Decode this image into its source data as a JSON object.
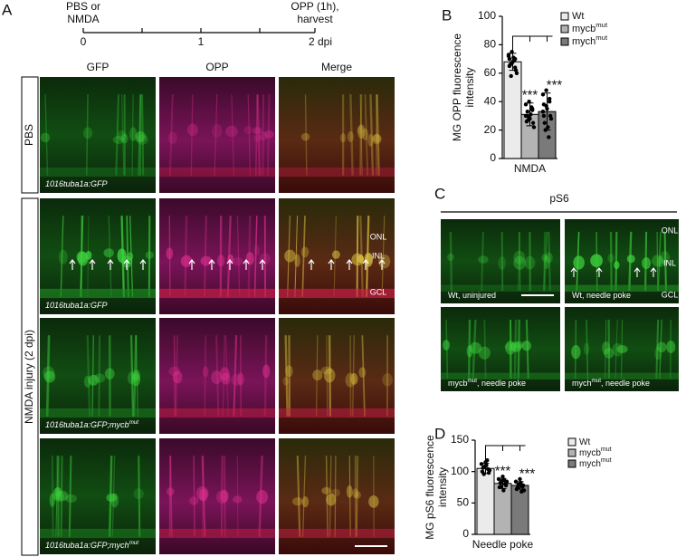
{
  "chart_data": [
    {
      "type": "bar",
      "panel": "B",
      "ylabel": [
        "MG OPP fluorescence",
        "intensity"
      ],
      "categories": [
        "NMDA"
      ],
      "series": [
        {
          "name": "Wt",
          "color": "#ebebeb",
          "values": [
            68
          ],
          "errors": [
            6
          ],
          "points": [
            72,
            75,
            70,
            65,
            68,
            62,
            66,
            71,
            60,
            58,
            69,
            73,
            67,
            64,
            70
          ]
        },
        {
          "name": "mycb",
          "name_sup": "mut",
          "color": "#b3b3b3",
          "values": [
            31
          ],
          "errors": [
            8
          ],
          "points": [
            38,
            40,
            35,
            30,
            28,
            25,
            33,
            31,
            22,
            27,
            36,
            30,
            29,
            34,
            26
          ]
        },
        {
          "name": "mych",
          "name_sup": "mut",
          "color": "#7a7a7a",
          "values": [
            33
          ],
          "errors": [
            13
          ],
          "points": [
            45,
            48,
            40,
            38,
            35,
            30,
            25,
            22,
            28,
            20,
            15,
            33,
            37,
            42,
            30
          ]
        }
      ],
      "significance": [
        "***",
        "***"
      ],
      "ylim": [
        0,
        100
      ],
      "yticks": [
        0,
        20,
        40,
        60,
        80,
        100
      ]
    },
    {
      "type": "bar",
      "panel": "D",
      "ylabel": [
        "MG pS6 fluorescence",
        "intensity"
      ],
      "categories": [
        "Needle poke"
      ],
      "series": [
        {
          "name": "Wt",
          "color": "#ebebeb",
          "values": [
            105
          ],
          "errors": [
            8
          ],
          "points": [
            112,
            108,
            104,
            100,
            115,
            98,
            106,
            110,
            102,
            96,
            118
          ]
        },
        {
          "name": "mycb",
          "name_sup": "mut",
          "color": "#b3b3b3",
          "values": [
            81
          ],
          "errors": [
            8
          ],
          "points": [
            88,
            85,
            80,
            75,
            92,
            78,
            82,
            70,
            84,
            76,
            86
          ]
        },
        {
          "name": "mych",
          "name_sup": "mut",
          "color": "#7a7a7a",
          "values": [
            78
          ],
          "errors": [
            6
          ],
          "points": [
            84,
            80,
            76,
            72,
            88,
            78,
            74,
            82,
            70,
            79,
            68
          ]
        }
      ],
      "significance": [
        "***",
        "***"
      ],
      "ylim": [
        0,
        150
      ],
      "yticks": [
        0,
        50,
        100,
        150
      ]
    }
  ],
  "panel_a": {
    "letter": "A",
    "timeline": {
      "start_label": [
        "PBS or",
        "NMDA"
      ],
      "end_label": [
        "OPP (1h),",
        "harvest"
      ],
      "ticks": [
        "0",
        "1",
        "2 dpi"
      ]
    },
    "columns": [
      "GFP",
      "OPP",
      "Merge"
    ],
    "rows": [
      "PBS",
      "NMDA injury (2 dpi)"
    ],
    "image_labels": [
      {
        "text": "1016tuba1a:GFP"
      },
      {
        "text": "1016tuba1a:GFP"
      },
      {
        "text": "1016tuba1a:GFP;mycb",
        "sup": "mut"
      },
      {
        "text": "1016tuba1a:GFP;mych",
        "sup": "mut"
      }
    ],
    "layers": [
      "ONL",
      "INL",
      "GCL"
    ]
  },
  "panel_c": {
    "letter": "C",
    "title": "pS6",
    "labels": [
      {
        "text": "Wt, uninjured"
      },
      {
        "text": "Wt, needle poke"
      },
      {
        "text": "mycb",
        "sup": "mut",
        "tail": ", needle poke"
      },
      {
        "text": "mych",
        "sup": "mut",
        "tail": ", needle poke"
      }
    ],
    "layers": [
      "ONL",
      "INL",
      "GCL"
    ]
  }
}
